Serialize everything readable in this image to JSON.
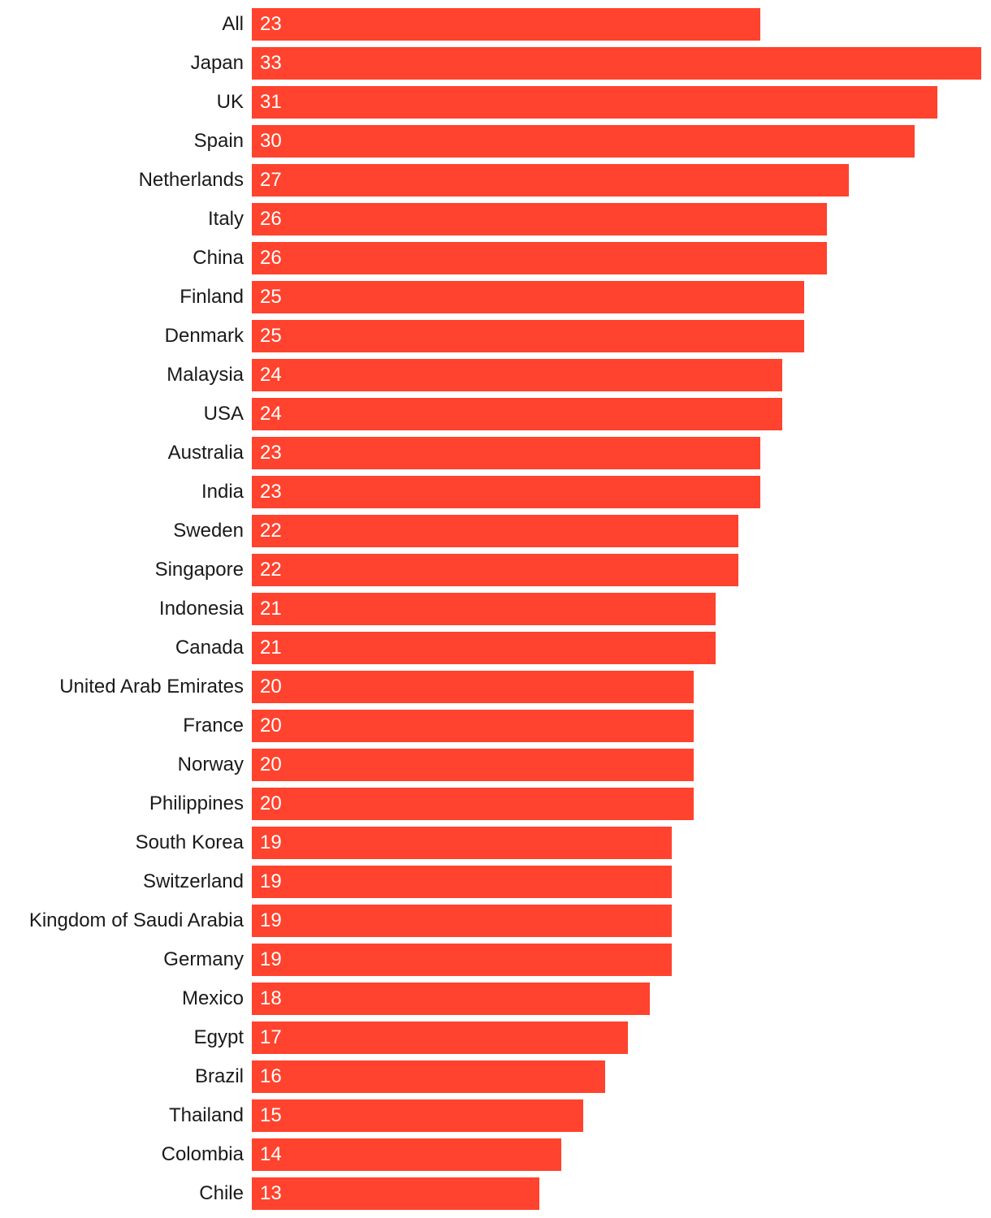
{
  "chart_data": {
    "type": "bar",
    "orientation": "horizontal",
    "title": "",
    "xlabel": "",
    "ylabel": "",
    "xlim": [
      0,
      33
    ],
    "grid": false,
    "bar_color": "#ff432e",
    "label_color": "#1a1a1a",
    "value_label_color": "#ffffff",
    "categories": [
      "All",
      "Japan",
      "UK",
      "Spain",
      "Netherlands",
      "Italy",
      "China",
      "Finland",
      "Denmark",
      "Malaysia",
      "USA",
      "Australia",
      "India",
      "Sweden",
      "Singapore",
      "Indonesia",
      "Canada",
      "United Arab Emirates",
      "France",
      "Norway",
      "Philippines",
      "South Korea",
      "Switzerland",
      "Kingdom of Saudi Arabia",
      "Germany",
      "Mexico",
      "Egypt",
      "Brazil",
      "Thailand",
      "Colombia",
      "Chile"
    ],
    "values": [
      23,
      33,
      31,
      30,
      27,
      26,
      26,
      25,
      25,
      24,
      24,
      23,
      23,
      22,
      22,
      21,
      21,
      20,
      20,
      20,
      20,
      19,
      19,
      19,
      19,
      18,
      17,
      16,
      15,
      14,
      13
    ]
  }
}
